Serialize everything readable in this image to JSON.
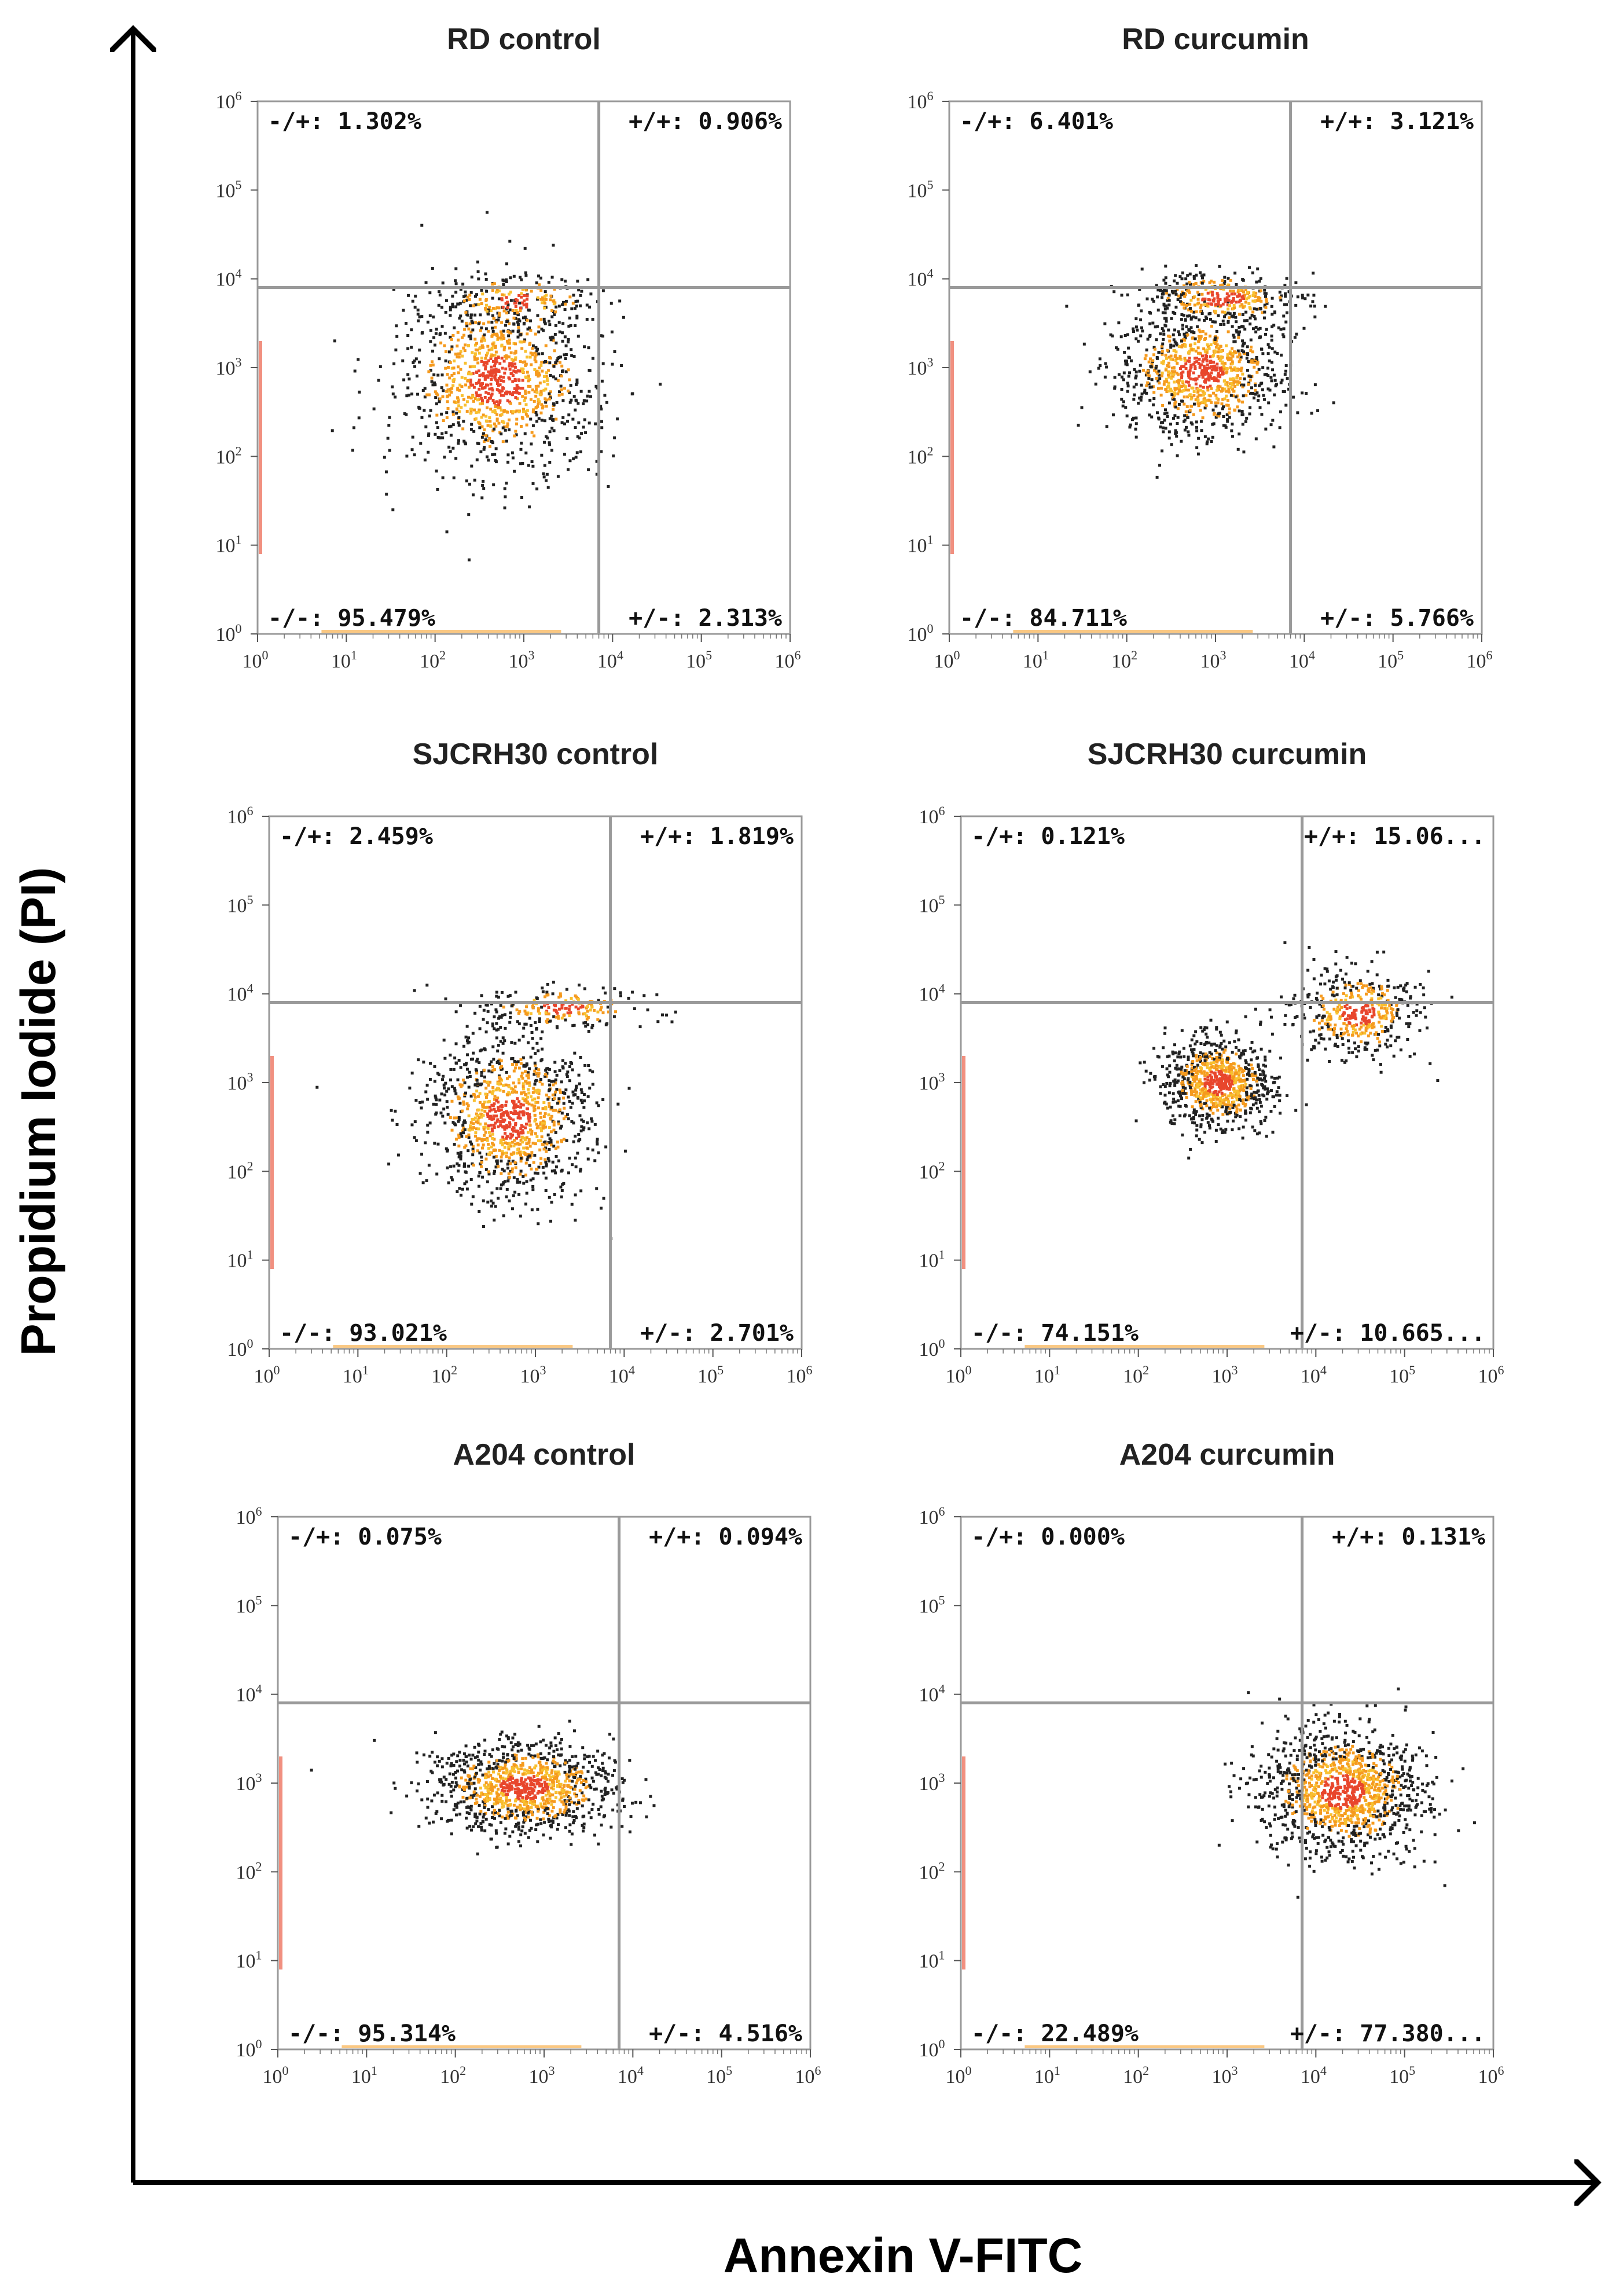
{
  "figure": {
    "x_axis_title": "Annexin V-FITC",
    "y_axis_title": "Propidium Iodide (PI)"
  },
  "tick_base": "10",
  "tick_exponents": [
    "0",
    "1",
    "2",
    "3",
    "4",
    "5",
    "6"
  ],
  "colors": {
    "axis": "#000000",
    "frame": "#999999",
    "gate": "#9a9a9a",
    "dot_dark": "#222222",
    "dot_orange": "#f59a1e",
    "dot_yellow": "#f8c030",
    "dot_red": "#e8462c"
  },
  "chart_data": [
    {
      "type": "scatter",
      "title": "RD control",
      "x_scale": "log",
      "y_scale": "log",
      "xlim": [
        1,
        1000000
      ],
      "ylim": [
        1,
        1000000
      ],
      "gate": {
        "x": 7000,
        "y": 8000
      },
      "quadrants": {
        "ul": "-/+: 1.302%",
        "ur": "+/+: 0.906%",
        "ll": "-/-: 95.479%",
        "lr": "+/-: 2.313%"
      },
      "clusters": [
        {
          "x": 500,
          "y": 700,
          "spread_x": 0.55,
          "spread_y": 0.5,
          "n": 1100
        },
        {
          "x": 800,
          "y": 5500,
          "spread_x": 0.45,
          "spread_y": 0.15,
          "n": 200
        }
      ]
    },
    {
      "type": "scatter",
      "title": "RD curcumin",
      "x_scale": "log",
      "y_scale": "log",
      "xlim": [
        1,
        1000000
      ],
      "ylim": [
        1,
        1000000
      ],
      "gate": {
        "x": 7000,
        "y": 8000
      },
      "quadrants": {
        "ul": "-/+: 6.401%",
        "ur": "+/+: 3.121%",
        "ll": "-/-: 84.711%",
        "lr": "+/-: 5.766%"
      },
      "clusters": [
        {
          "x": 700,
          "y": 900,
          "spread_x": 0.45,
          "spread_y": 0.35,
          "n": 1000
        },
        {
          "x": 1200,
          "y": 6000,
          "spread_x": 0.45,
          "spread_y": 0.15,
          "n": 350
        }
      ]
    },
    {
      "type": "scatter",
      "title": "SJCRH30 control",
      "x_scale": "log",
      "y_scale": "log",
      "xlim": [
        1,
        1000000
      ],
      "ylim": [
        1,
        1000000
      ],
      "gate": {
        "x": 7000,
        "y": 8000
      },
      "quadrants": {
        "ul": "-/+: 2.459%",
        "ur": "+/+: 1.819%",
        "ll": "-/-: 93.021%",
        "lr": "+/-: 2.701%"
      },
      "clusters": [
        {
          "x": 500,
          "y": 400,
          "spread_x": 0.45,
          "spread_y": 0.45,
          "n": 1100
        },
        {
          "x": 2000,
          "y": 7000,
          "spread_x": 0.45,
          "spread_y": 0.12,
          "n": 200
        }
      ]
    },
    {
      "type": "scatter",
      "title": "SJCRH30 curcumin",
      "x_scale": "log",
      "y_scale": "log",
      "xlim": [
        1,
        1000000
      ],
      "ylim": [
        1,
        1000000
      ],
      "gate": {
        "x": 7000,
        "y": 8000
      },
      "quadrants": {
        "ul": "-/+: 0.121%",
        "ur": "+/+: 15.06...",
        "ll": "-/-: 74.151%",
        "lr": "+/-: 10.665..."
      },
      "clusters": [
        {
          "x": 800,
          "y": 1000,
          "spread_x": 0.3,
          "spread_y": 0.25,
          "n": 900
        },
        {
          "x": 30000,
          "y": 6000,
          "spread_x": 0.35,
          "spread_y": 0.25,
          "n": 450
        }
      ]
    },
    {
      "type": "scatter",
      "title": "A204 control",
      "x_scale": "log",
      "y_scale": "log",
      "xlim": [
        1,
        1000000
      ],
      "ylim": [
        1,
        1000000
      ],
      "gate": {
        "x": 7000,
        "y": 8000
      },
      "quadrants": {
        "ul": "-/+: 0.075%",
        "ur": "+/+: 0.094%",
        "ll": "-/-: 95.314%",
        "lr": "+/-: 4.516%"
      },
      "clusters": [
        {
          "x": 600,
          "y": 900,
          "spread_x": 0.5,
          "spread_y": 0.25,
          "n": 1100
        }
      ]
    },
    {
      "type": "scatter",
      "title": "A204 curcumin",
      "x_scale": "log",
      "y_scale": "log",
      "xlim": [
        1,
        1000000
      ],
      "ylim": [
        1,
        1000000
      ],
      "gate": {
        "x": 7000,
        "y": 8000
      },
      "quadrants": {
        "ul": "-/+: 0.000%",
        "ur": "+/+: 0.131%",
        "ll": "-/-: 22.489%",
        "lr": "+/-: 77.380..."
      },
      "clusters": [
        {
          "x": 20000,
          "y": 800,
          "spread_x": 0.45,
          "spread_y": 0.35,
          "n": 1300
        }
      ]
    }
  ]
}
